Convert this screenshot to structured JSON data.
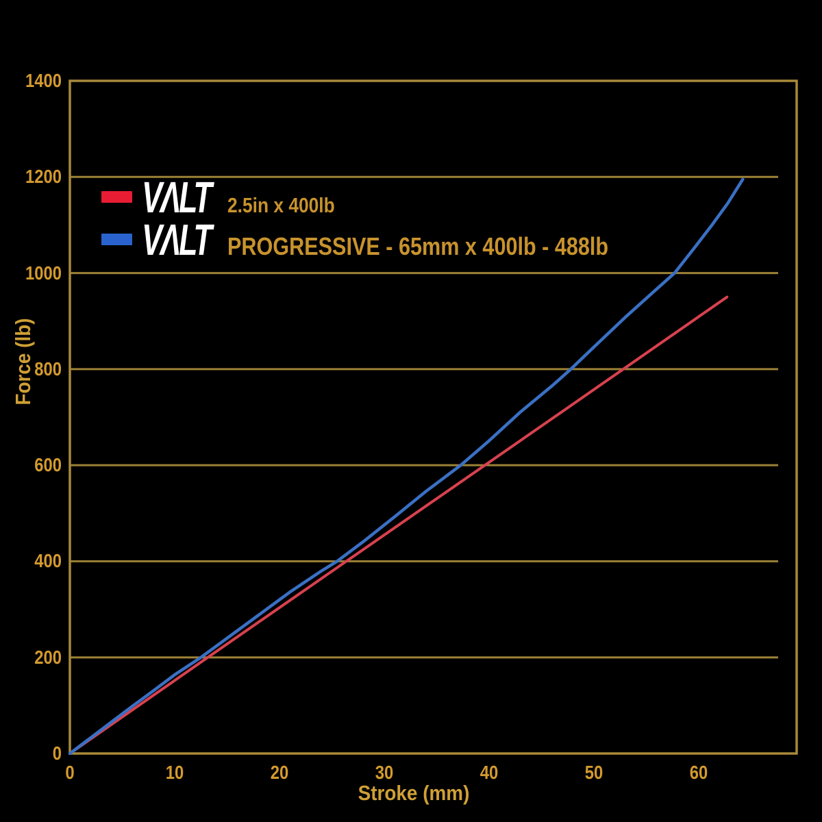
{
  "colors": {
    "background": "#000000",
    "frame_gold": "#a8893a",
    "grid_gold": "#9d8136",
    "tick_label": "#d49a2e",
    "axis_title": "#cfa035",
    "legend_text": "#c8932d",
    "logo_white": "#ffffff",
    "red_line": "#d8414e",
    "blue_line": "#3a70c4",
    "red_swatch": "#e81c33",
    "blue_swatch": "#2a63cd"
  },
  "legend": {
    "rows": [
      {
        "logo": "VΛLT",
        "label": "2.5in x 400lb",
        "swatch_color": "#e81c33"
      },
      {
        "logo": "VΛLT",
        "label": "PROGRESSIVE - 65mm x 400lb - 488lb",
        "swatch_color": "#2a63cd"
      }
    ]
  },
  "chart_data": {
    "type": "line",
    "title": "",
    "xlabel": "Stroke (mm)",
    "ylabel": "Force (lb)",
    "xlim": [
      0,
      69.4
    ],
    "ylim": [
      0,
      1400
    ],
    "x_ticks": [
      0,
      10,
      20,
      30,
      40,
      50,
      60
    ],
    "y_ticks": [
      0,
      200,
      400,
      600,
      800,
      1000,
      1200,
      1400
    ],
    "grid": "horizontal-only",
    "legend_position": "upper-left-inside",
    "series": [
      {
        "name": "VALT 2.5in x 400lb",
        "color": "#d8414e",
        "stroke_width": 4,
        "points": [
          [
            0,
            0
          ],
          [
            15,
            228
          ],
          [
            31.4,
            476
          ],
          [
            47,
            712
          ],
          [
            62.7,
            950
          ]
        ]
      },
      {
        "name": "VALT PROGRESSIVE - 65mm x 400lb - 488lb",
        "color": "#3a70c4",
        "stroke_width": 4.5,
        "points": [
          [
            0,
            0
          ],
          [
            2,
            33
          ],
          [
            4,
            66
          ],
          [
            6,
            99
          ],
          [
            8,
            131
          ],
          [
            10,
            164
          ],
          [
            12.5,
            200
          ],
          [
            15,
            240
          ],
          [
            18,
            288
          ],
          [
            21,
            336
          ],
          [
            24,
            380
          ],
          [
            25.5,
            400
          ],
          [
            28,
            441
          ],
          [
            31,
            493
          ],
          [
            34,
            546
          ],
          [
            37.3,
            600
          ],
          [
            40,
            651
          ],
          [
            43,
            711
          ],
          [
            46,
            765
          ],
          [
            47.8,
            800
          ],
          [
            50,
            846
          ],
          [
            53,
            908
          ],
          [
            55.5,
            957
          ],
          [
            57.7,
            1000
          ],
          [
            59.5,
            1050
          ],
          [
            61.2,
            1098
          ],
          [
            62.8,
            1146
          ],
          [
            64.2,
            1195
          ]
        ]
      }
    ]
  }
}
